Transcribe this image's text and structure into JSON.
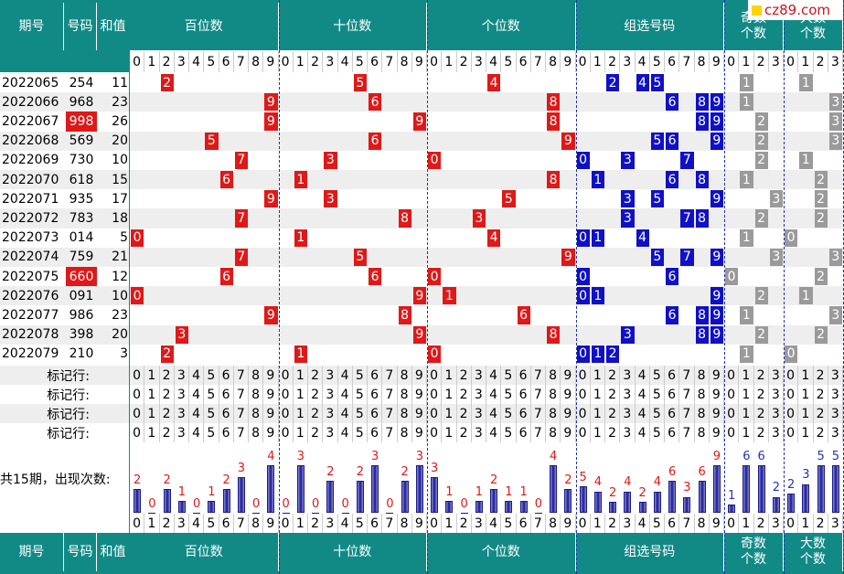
{
  "header": {
    "period": "期号",
    "number": "号码",
    "sum": "和值",
    "groups": [
      "百位数",
      "十位数",
      "个位数",
      "组选号码"
    ],
    "odd": [
      "奇数",
      "个数"
    ],
    "big": [
      "大数",
      "个数"
    ]
  },
  "digits": [
    0,
    1,
    2,
    3,
    4,
    5,
    6,
    7,
    8,
    9
  ],
  "count_digits": [
    0,
    1,
    2,
    3
  ],
  "rows": [
    {
      "period": "2022065",
      "number": "254",
      "sum": 11,
      "hundreds": 2,
      "tens": 5,
      "units": 4,
      "group": [
        2,
        4,
        5
      ],
      "odd": 1,
      "big": 1,
      "pair": false
    },
    {
      "period": "2022066",
      "number": "968",
      "sum": 23,
      "hundreds": 9,
      "tens": 6,
      "units": 8,
      "group": [
        6,
        8,
        9
      ],
      "odd": 1,
      "big": 3,
      "pair": false
    },
    {
      "period": "2022067",
      "number": "998",
      "sum": 26,
      "hundreds": 9,
      "tens": 9,
      "units": 8,
      "group": [
        8,
        9
      ],
      "odd": 2,
      "big": 3,
      "pair": true
    },
    {
      "period": "2022068",
      "number": "569",
      "sum": 20,
      "hundreds": 5,
      "tens": 6,
      "units": 9,
      "group": [
        5,
        6,
        9
      ],
      "odd": 2,
      "big": 3,
      "pair": false
    },
    {
      "period": "2022069",
      "number": "730",
      "sum": 10,
      "hundreds": 7,
      "tens": 3,
      "units": 0,
      "group": [
        0,
        3,
        7
      ],
      "odd": 2,
      "big": 1,
      "pair": false
    },
    {
      "period": "2022070",
      "number": "618",
      "sum": 15,
      "hundreds": 6,
      "tens": 1,
      "units": 8,
      "group": [
        1,
        6,
        8
      ],
      "odd": 1,
      "big": 2,
      "pair": false
    },
    {
      "period": "2022071",
      "number": "935",
      "sum": 17,
      "hundreds": 9,
      "tens": 3,
      "units": 5,
      "group": [
        3,
        5,
        9
      ],
      "odd": 3,
      "big": 2,
      "pair": false
    },
    {
      "period": "2022072",
      "number": "783",
      "sum": 18,
      "hundreds": 7,
      "tens": 8,
      "units": 3,
      "group": [
        3,
        7,
        8
      ],
      "odd": 2,
      "big": 2,
      "pair": false
    },
    {
      "period": "2022073",
      "number": "014",
      "sum": 5,
      "hundreds": 0,
      "tens": 1,
      "units": 4,
      "group": [
        0,
        1,
        4
      ],
      "odd": 1,
      "big": 0,
      "pair": false
    },
    {
      "period": "2022074",
      "number": "759",
      "sum": 21,
      "hundreds": 7,
      "tens": 5,
      "units": 9,
      "group": [
        5,
        7,
        9
      ],
      "odd": 3,
      "big": 3,
      "pair": false
    },
    {
      "period": "2022075",
      "number": "660",
      "sum": 12,
      "hundreds": 6,
      "tens": 6,
      "units": 0,
      "group": [
        0,
        6
      ],
      "odd": 0,
      "big": 2,
      "pair": true
    },
    {
      "period": "2022076",
      "number": "091",
      "sum": 10,
      "hundreds": 0,
      "tens": 9,
      "units": 1,
      "group": [
        0,
        1,
        9
      ],
      "odd": 2,
      "big": 1,
      "pair": false
    },
    {
      "period": "2022077",
      "number": "986",
      "sum": 23,
      "hundreds": 9,
      "tens": 8,
      "units": 6,
      "group": [
        6,
        8,
        9
      ],
      "odd": 1,
      "big": 3,
      "pair": false
    },
    {
      "period": "2022078",
      "number": "398",
      "sum": 20,
      "hundreds": 3,
      "tens": 9,
      "units": 8,
      "group": [
        3,
        8,
        9
      ],
      "odd": 2,
      "big": 2,
      "pair": false
    },
    {
      "period": "2022079",
      "number": "210",
      "sum": 3,
      "hundreds": 2,
      "tens": 1,
      "units": 0,
      "group": [
        0,
        1,
        2
      ],
      "odd": 1,
      "big": 0,
      "pair": false
    }
  ],
  "marker_labels": [
    "标记行:",
    "标记行:",
    "标记行:",
    "标记行:"
  ],
  "stats": {
    "label": "共15期，出现次数:",
    "hundreds": [
      2,
      0,
      2,
      1,
      0,
      1,
      2,
      3,
      0,
      4
    ],
    "tens": [
      0,
      3,
      0,
      2,
      0,
      2,
      3,
      0,
      2,
      3
    ],
    "units": [
      3,
      1,
      0,
      1,
      2,
      1,
      1,
      0,
      4,
      2
    ],
    "group": [
      5,
      4,
      2,
      4,
      2,
      4,
      6,
      3,
      6,
      9
    ],
    "odd": [
      1,
      6,
      6,
      2
    ],
    "big": [
      2,
      3,
      5,
      5
    ]
  },
  "watermark": "cz89.com"
}
